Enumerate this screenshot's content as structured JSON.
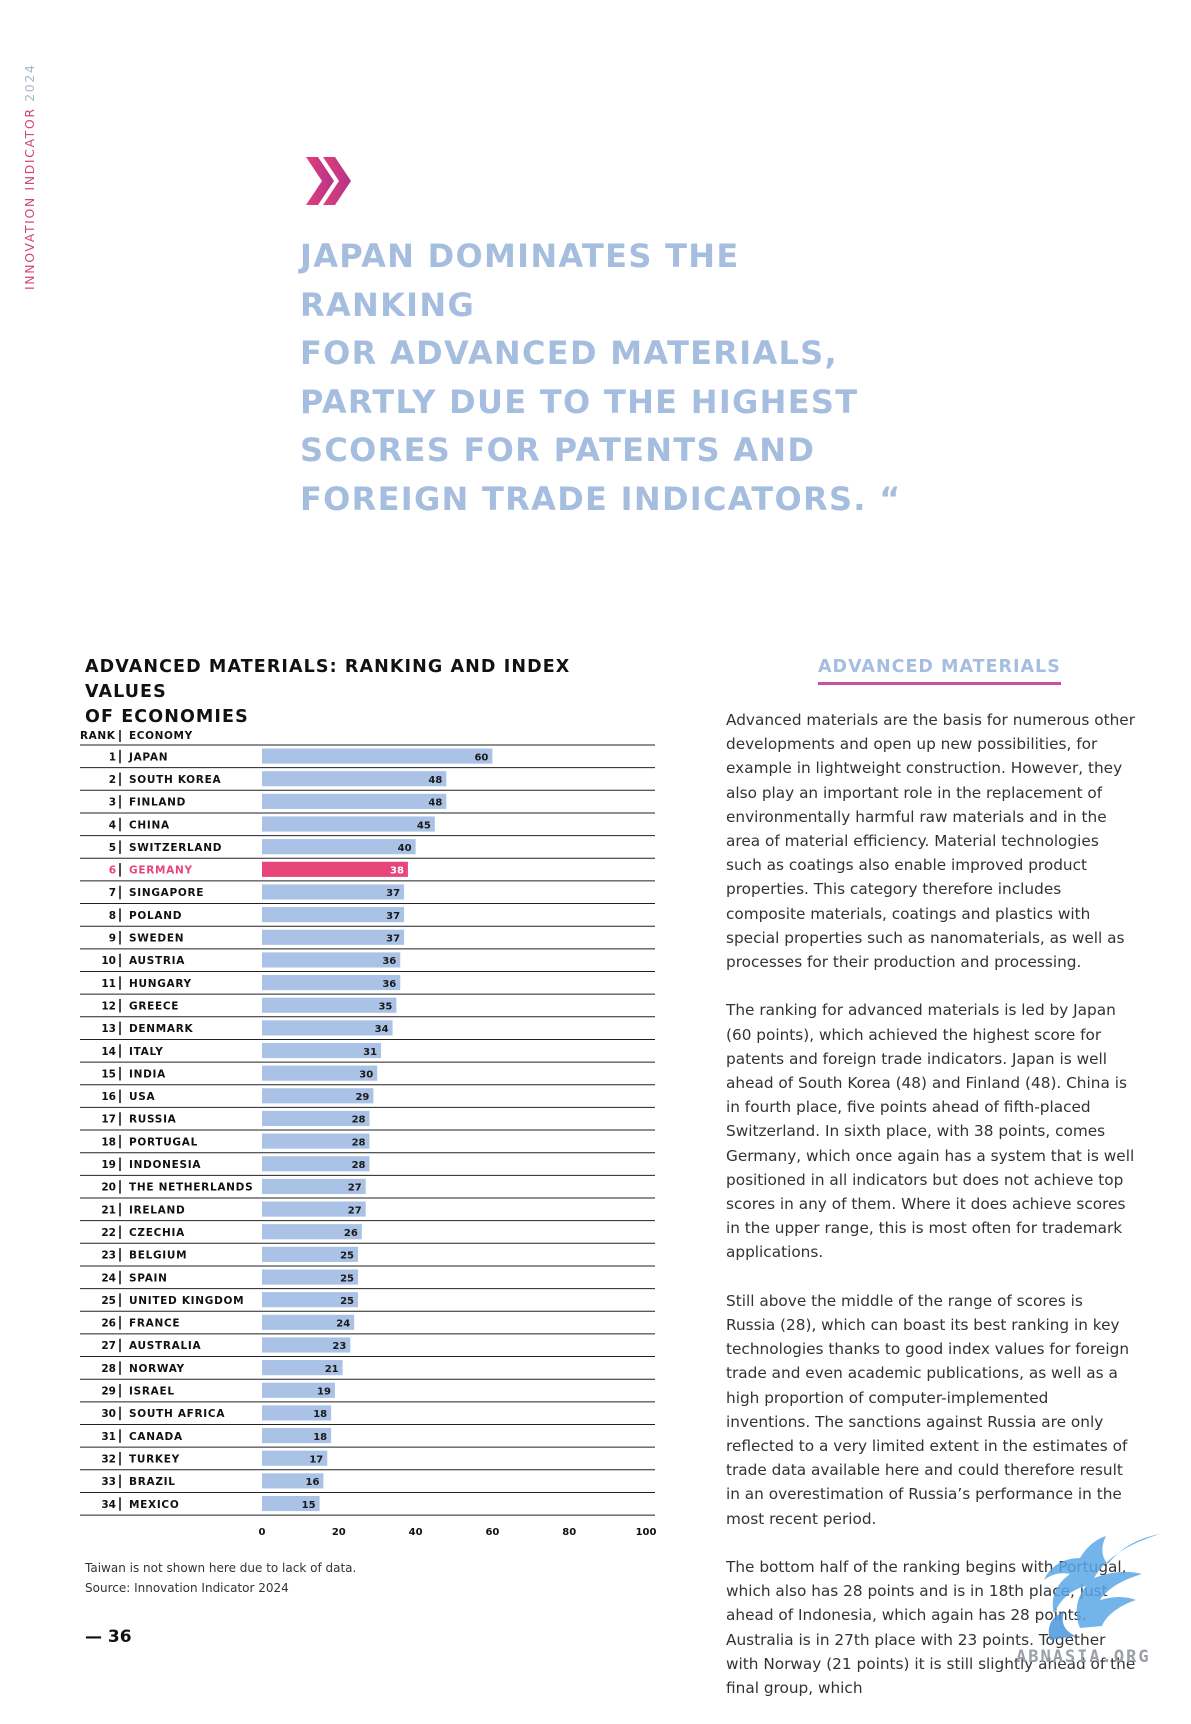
{
  "side_label": {
    "text": "INNOVATION INDICATOR",
    "year": "2024"
  },
  "colors": {
    "accent_magenta": "#d0457a",
    "quote_blue": "#a5bdde",
    "bar_blue": "#a9c2e6",
    "highlight_pink": "#e8457a"
  },
  "quote_icon": "double-chevron-quote-icon",
  "quote_lines": [
    "JAPAN DOMINATES THE RANKING",
    "FOR ADVANCED MATERIALS,",
    "PARTLY DUE TO THE HIGHEST",
    "SCORES FOR PATENTS AND",
    "FOREIGN TRADE INDICATORS. “"
  ],
  "chart_data": {
    "type": "bar",
    "orientation": "horizontal",
    "title_lines": [
      "ADVANCED MATERIALS: RANKING AND INDEX VALUES",
      "OF ECONOMIES"
    ],
    "column_headers": {
      "rank": "RANK",
      "economy": "ECONOMY"
    },
    "highlight": "GERMANY",
    "rows": [
      {
        "rank": 1,
        "economy": "JAPAN",
        "value": 60
      },
      {
        "rank": 2,
        "economy": "SOUTH KOREA",
        "value": 48
      },
      {
        "rank": 3,
        "economy": "FINLAND",
        "value": 48
      },
      {
        "rank": 4,
        "economy": "CHINA",
        "value": 45
      },
      {
        "rank": 5,
        "economy": "SWITZERLAND",
        "value": 40
      },
      {
        "rank": 6,
        "economy": "GERMANY",
        "value": 38
      },
      {
        "rank": 7,
        "economy": "SINGAPORE",
        "value": 37
      },
      {
        "rank": 8,
        "economy": "POLAND",
        "value": 37
      },
      {
        "rank": 9,
        "economy": "SWEDEN",
        "value": 37
      },
      {
        "rank": 10,
        "economy": "AUSTRIA",
        "value": 36
      },
      {
        "rank": 11,
        "economy": "HUNGARY",
        "value": 36
      },
      {
        "rank": 12,
        "economy": "GREECE",
        "value": 35
      },
      {
        "rank": 13,
        "economy": "DENMARK",
        "value": 34
      },
      {
        "rank": 14,
        "economy": "ITALY",
        "value": 31
      },
      {
        "rank": 15,
        "economy": "INDIA",
        "value": 30
      },
      {
        "rank": 16,
        "economy": "USA",
        "value": 29
      },
      {
        "rank": 17,
        "economy": "RUSSIA",
        "value": 28
      },
      {
        "rank": 18,
        "economy": "PORTUGAL",
        "value": 28
      },
      {
        "rank": 19,
        "economy": "INDONESIA",
        "value": 28
      },
      {
        "rank": 20,
        "economy": "THE NETHERLANDS",
        "value": 27
      },
      {
        "rank": 21,
        "economy": "IRELAND",
        "value": 27
      },
      {
        "rank": 22,
        "economy": "CZECHIA",
        "value": 26
      },
      {
        "rank": 23,
        "economy": "BELGIUM",
        "value": 25
      },
      {
        "rank": 24,
        "economy": "SPAIN",
        "value": 25
      },
      {
        "rank": 25,
        "economy": "UNITED KINGDOM",
        "value": 25
      },
      {
        "rank": 26,
        "economy": "FRANCE",
        "value": 24
      },
      {
        "rank": 27,
        "economy": "AUSTRALIA",
        "value": 23
      },
      {
        "rank": 28,
        "economy": "NORWAY",
        "value": 21
      },
      {
        "rank": 29,
        "economy": "ISRAEL",
        "value": 19
      },
      {
        "rank": 30,
        "economy": "SOUTH AFRICA",
        "value": 18
      },
      {
        "rank": 31,
        "economy": "CANADA",
        "value": 18
      },
      {
        "rank": 32,
        "economy": "TURKEY",
        "value": 17
      },
      {
        "rank": 33,
        "economy": "BRAZIL",
        "value": 16
      },
      {
        "rank": 34,
        "economy": "MEXICO",
        "value": 15
      }
    ],
    "xlim": [
      0,
      100
    ],
    "xticks": [
      0,
      20,
      40,
      60,
      80,
      100
    ],
    "grid": false
  },
  "footnote_lines": [
    "Taiwan is not shown here due to lack of data.",
    "Source: Innovation Indicator 2024"
  ],
  "page_number": "— 36",
  "section_title": "ADVANCED MATERIALS",
  "paragraphs": [
    "Advanced materials are the basis for numerous other developments and open up new possibilities, for example in lightweight construction. However, they also play an important role in the replacement of environmentally harmful raw materials and in the area of material efficiency. Material technologies such as coatings also enable improved product properties. This category therefore includes composite materials, coatings and plastics with special properties such as nanomaterials, as well as processes for their production and processing.",
    "The ranking for advanced materials is led by Japan (60 points), which achieved the highest score for patents and foreign trade indicators. Japan is well ahead of South Korea (48) and Finland (48). China is in fourth place, five points ahead of fifth-placed Switzerland. In sixth place, with 38 points, comes Germany, which once again has a system that is well positioned in all indicators but does not achieve top scores in any of them. Where it does achieve scores in the upper range, this is most often for trademark applications.",
    "Still above the middle of the range of scores is Russia (28), which can boast its best ranking in key technologies thanks to good index values for foreign trade and even academic publications, as well as a high proportion of computer-implemented inventions. The sanctions against Russia are only reflected to a very limited extent in the estimates of trade data available here and could therefore result in an overestimation of Russia’s performance in the most recent period.",
    "The bottom half of the ranking begins with Portugal, which also has 28 points and is in 18th place, just ahead of Indonesia, which again has 28 points. Australia is in 27th place with 23 points. Together with Norway (21 points) it is still slightly ahead of the final group, which"
  ],
  "watermark": {
    "icon": "griffin-logo-icon",
    "text": "ABNASIA.ORG"
  }
}
